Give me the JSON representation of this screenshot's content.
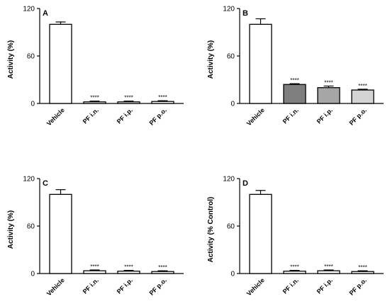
{
  "chart_data": [
    {
      "type": "bar",
      "panel": "A",
      "ylabel": "Activity (%)",
      "ylim": [
        0,
        120
      ],
      "yticks": [
        "0",
        "60",
        "120"
      ],
      "categories": [
        "Vehicle",
        "PF i.n.",
        "PF i.p.",
        "PF p.o."
      ],
      "values": [
        100,
        2,
        2,
        2.5
      ],
      "errors": [
        3,
        1,
        1,
        1
      ],
      "annotations": [
        "",
        "****",
        "****",
        "****"
      ],
      "colors": [
        "#ffffff",
        "#ffffff",
        "#ffffff",
        "#ffffff"
      ]
    },
    {
      "type": "bar",
      "panel": "B",
      "ylabel": "Activity (%)",
      "ylim": [
        0,
        120
      ],
      "yticks": [
        "0",
        "60",
        "120"
      ],
      "categories": [
        "Vehicle",
        "PF i.n.",
        "PF i.p.",
        "PF p.o."
      ],
      "values": [
        100,
        24,
        20,
        17
      ],
      "errors": [
        7,
        1,
        2,
        1
      ],
      "annotations": [
        "",
        "****",
        "****",
        "****"
      ],
      "colors": [
        "#ffffff",
        "#7f7f7f",
        "#a6a6a6",
        "#d4d4d4"
      ]
    },
    {
      "type": "bar",
      "panel": "C",
      "ylabel": "Activity (%)",
      "ylim": [
        0,
        120
      ],
      "yticks": [
        "0",
        "60",
        "120"
      ],
      "categories": [
        "Vehicle",
        "PF i.n.",
        "PF i.p.",
        "PF p.o."
      ],
      "values": [
        100,
        3.5,
        3,
        2.5
      ],
      "errors": [
        6,
        1,
        1,
        1
      ],
      "annotations": [
        "",
        "****",
        "****",
        "****"
      ],
      "colors": [
        "#ffffff",
        "#ffffff",
        "#ffffff",
        "#ffffff"
      ]
    },
    {
      "type": "bar",
      "panel": "D",
      "ylabel": "Activity (% Control)",
      "ylim": [
        0,
        120
      ],
      "yticks": [
        "0",
        "60",
        "120"
      ],
      "categories": [
        "Vehicle",
        "PF i.n.",
        "PF i.p.",
        "PF p.o."
      ],
      "values": [
        100,
        3,
        3.5,
        2.5
      ],
      "errors": [
        5,
        1,
        1,
        1
      ],
      "annotations": [
        "",
        "****",
        "****",
        "****"
      ],
      "colors": [
        "#ffffff",
        "#ffffff",
        "#ffffff",
        "#ffffff"
      ]
    }
  ]
}
